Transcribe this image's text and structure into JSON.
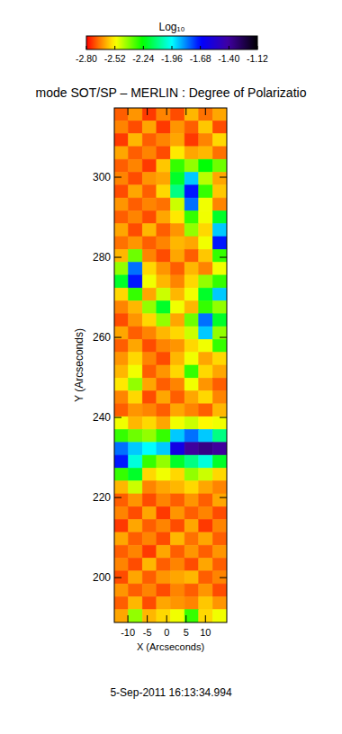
{
  "chart_data": {
    "type": "heatmap",
    "title": "mode SOT/SP – MERLIN : Degree of Polarizatio",
    "x_label": "X (Arcseconds)",
    "y_label": "Y (Arcseconds)",
    "annotation": "5-Sep-2011 16:13:34.994",
    "xlim": [
      -13.5,
      15.5
    ],
    "ylim": [
      188.8,
      317.3
    ],
    "xticks": [
      -10,
      -5,
      0,
      5,
      10
    ],
    "yticks": [
      200,
      220,
      240,
      260,
      280,
      300
    ],
    "colorbar": {
      "label": "Log₁₀",
      "range": [
        -2.8,
        -1.12
      ],
      "ticks": [
        {
          "value": -2.8,
          "label": "-2.80"
        },
        -2.52,
        -2.24,
        -1.96,
        -1.68,
        {
          "value": -1.4,
          "label": "-1.40"
        },
        -1.12
      ]
    },
    "cells": [
      [
        -2.7,
        -2.64,
        -2.74,
        -2.66,
        -2.72,
        -2.6,
        -2.68,
        -2.62
      ],
      [
        -2.66,
        -2.72,
        -2.62,
        -2.74,
        -2.64,
        -2.7,
        -2.58,
        -2.72
      ],
      [
        -2.74,
        -2.6,
        -2.7,
        -2.66,
        -2.62,
        -2.74,
        -2.66,
        -2.56
      ],
      [
        -2.62,
        -2.7,
        -2.66,
        -2.72,
        -2.54,
        -2.62,
        -2.6,
        -2.68
      ],
      [
        -2.7,
        -2.66,
        -2.74,
        -2.58,
        -2.3,
        -2.4,
        -2.24,
        -2.36
      ],
      [
        -2.66,
        -2.72,
        -2.64,
        -2.62,
        -2.2,
        -1.9,
        -2.44,
        -2.62
      ],
      [
        -2.72,
        -2.62,
        -2.7,
        -2.56,
        -2.1,
        -1.7,
        -2.3,
        -2.58
      ],
      [
        -2.64,
        -2.7,
        -2.66,
        -2.68,
        -2.46,
        -1.8,
        -2.5,
        -2.66
      ],
      [
        -2.7,
        -2.66,
        -2.72,
        -2.62,
        -2.54,
        -2.3,
        -2.5,
        -2.2
      ],
      [
        -2.62,
        -2.72,
        -2.6,
        -2.7,
        -2.64,
        -2.4,
        -2.56,
        -1.9
      ],
      [
        -2.68,
        -2.64,
        -2.7,
        -2.66,
        -2.6,
        -2.62,
        -2.5,
        -1.7
      ],
      [
        -2.6,
        -2.36,
        -2.66,
        -2.72,
        -2.62,
        -2.7,
        -2.58,
        -2.3
      ],
      [
        -2.4,
        -1.8,
        -2.56,
        -2.64,
        -2.7,
        -2.6,
        -2.66,
        -2.5
      ],
      [
        -2.2,
        -1.7,
        -2.5,
        -2.6,
        -2.66,
        -2.56,
        -2.4,
        -2.3
      ],
      [
        -2.56,
        -2.3,
        -2.62,
        -2.46,
        -2.6,
        -2.5,
        -2.2,
        -1.9
      ],
      [
        -2.66,
        -2.6,
        -2.4,
        -2.2,
        -2.5,
        -2.6,
        -2.3,
        -2.4
      ],
      [
        -2.72,
        -2.64,
        -2.56,
        -2.4,
        -2.62,
        -2.36,
        -1.8,
        -2.2
      ],
      [
        -2.62,
        -2.7,
        -2.66,
        -2.6,
        -2.56,
        -2.46,
        -1.9,
        -2.4
      ],
      [
        -2.7,
        -2.62,
        -2.72,
        -2.66,
        -2.64,
        -2.56,
        -2.5,
        -2.3
      ],
      [
        -2.64,
        -2.56,
        -2.66,
        -2.72,
        -2.6,
        -2.5,
        -2.62,
        -2.56
      ],
      [
        -2.6,
        -2.5,
        -2.7,
        -2.64,
        -2.56,
        -2.3,
        -2.56,
        -2.62
      ],
      [
        -2.54,
        -2.4,
        -2.62,
        -2.7,
        -2.66,
        -2.5,
        -2.64,
        -2.7
      ],
      [
        -2.66,
        -2.56,
        -2.72,
        -2.62,
        -2.7,
        -2.62,
        -2.56,
        -2.66
      ],
      [
        -2.7,
        -2.64,
        -2.66,
        -2.7,
        -2.62,
        -2.66,
        -2.7,
        -2.6
      ],
      [
        -2.5,
        -2.6,
        -2.56,
        -2.62,
        -2.5,
        -2.46,
        -2.52,
        -2.5
      ],
      [
        -2.3,
        -2.36,
        -2.4,
        -2.3,
        -1.9,
        -1.8,
        -1.9,
        -2.1
      ],
      [
        -1.8,
        -1.9,
        -1.96,
        -1.9,
        -1.6,
        -1.4,
        -1.36,
        -1.4
      ],
      [
        -1.7,
        -2.0,
        -2.3,
        -2.4,
        -2.2,
        -2.1,
        -2.0,
        -2.2
      ],
      [
        -2.3,
        -2.2,
        -2.56,
        -2.5,
        -2.56,
        -2.4,
        -2.46,
        -2.56
      ],
      [
        -2.6,
        -2.46,
        -2.66,
        -2.62,
        -2.6,
        -2.56,
        -2.62,
        -2.66
      ],
      [
        -2.7,
        -2.64,
        -2.72,
        -2.66,
        -2.7,
        -2.64,
        -2.7,
        -2.62
      ],
      [
        -2.66,
        -2.72,
        -2.62,
        -2.74,
        -2.64,
        -2.7,
        -2.66,
        -2.72
      ],
      [
        -2.74,
        -2.62,
        -2.7,
        -2.66,
        -2.72,
        -2.62,
        -2.74,
        -2.66
      ],
      [
        -2.62,
        -2.7,
        -2.66,
        -2.72,
        -2.6,
        -2.68,
        -2.62,
        -2.7
      ],
      [
        -2.7,
        -2.66,
        -2.74,
        -2.62,
        -2.7,
        -2.64,
        -2.7,
        -2.64
      ],
      [
        -2.66,
        -2.72,
        -2.6,
        -2.7,
        -2.66,
        -2.72,
        -2.62,
        -2.7
      ],
      [
        -2.72,
        -2.62,
        -2.7,
        -2.64,
        -2.62,
        -2.6,
        -2.7,
        -2.66
      ],
      [
        -2.64,
        -2.7,
        -2.66,
        -2.72,
        -2.66,
        -2.7,
        -2.64,
        -2.72
      ],
      [
        -2.7,
        -2.6,
        -2.72,
        -2.62,
        -2.64,
        -2.66,
        -2.58,
        -2.64
      ],
      [
        -2.62,
        -2.4,
        -2.6,
        -2.56,
        -2.5,
        -2.3,
        -2.56,
        -2.5
      ]
    ]
  }
}
